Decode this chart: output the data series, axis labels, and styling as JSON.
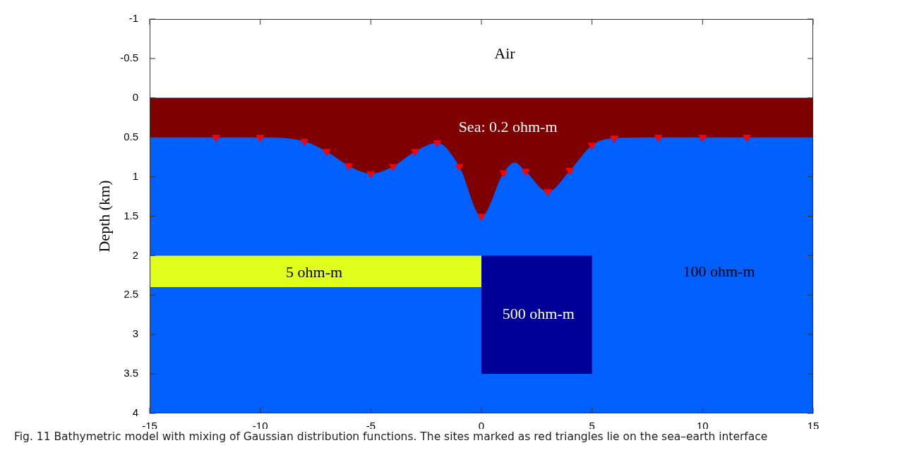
{
  "chart_data": {
    "type": "area",
    "xlabel": null,
    "ylabel": "Depth (km)",
    "xlim": [
      -15,
      15
    ],
    "xticks": [
      -15,
      -10,
      -5,
      0,
      5,
      10,
      15
    ],
    "ylim": [
      4,
      -1
    ],
    "yticks": [
      -1,
      -0.5,
      0,
      0.5,
      1,
      1.5,
      2,
      2.5,
      3,
      3.5,
      4
    ],
    "grid": false,
    "legend": false,
    "bands": [
      {
        "axis": "y",
        "from": 0,
        "to": 4,
        "color": "#005fff"
      }
    ],
    "series": [
      {
        "color": "#7f0000",
        "x": [
          -15,
          -12,
          -10,
          -8,
          -7,
          -6,
          -5,
          -4,
          -3,
          -2,
          -1,
          0,
          1,
          1.5,
          2,
          3,
          4,
          5,
          6,
          8,
          10,
          12,
          15
        ],
        "values": [
          0.5,
          0.5,
          0.5,
          0.55,
          0.68,
          0.86,
          0.96,
          0.87,
          0.68,
          0.57,
          0.87,
          1.5,
          0.95,
          0.82,
          0.93,
          1.19,
          0.92,
          0.6,
          0.51,
          0.5,
          0.5,
          0.5,
          0.5
        ]
      },
      {
        "type": "area",
        "color": "#e0ff1a",
        "x": [
          -15,
          0,
          0,
          -15,
          -15
        ],
        "values": [
          2,
          2,
          2.4,
          2.4,
          2
        ]
      },
      {
        "type": "area",
        "color": "#000099",
        "x": [
          0,
          5,
          5,
          0,
          0
        ],
        "values": [
          2,
          2,
          3.5,
          3.5,
          2
        ]
      },
      {
        "type": "scatter",
        "color": "#ff0000",
        "marker": "triangle",
        "x": [
          -12,
          -10,
          -8,
          -7,
          -6,
          -5,
          -4,
          -3,
          -2,
          -1,
          0,
          1,
          2,
          3,
          4,
          5,
          6,
          8,
          10,
          12
        ],
        "values": [
          0.5,
          0.5,
          0.55,
          0.68,
          0.86,
          0.96,
          0.87,
          0.68,
          0.57,
          0.87,
          1.5,
          0.95,
          0.93,
          1.19,
          0.92,
          0.6,
          0.51,
          0.5,
          0.5,
          0.5
        ]
      }
    ],
    "annotations": [
      "Air",
      "Sea: 0.2 ohm-m",
      "5 ohm-m",
      "500 ohm-m",
      "100 ohm-m",
      "Fig. 11  Bathymetric model with mixing of Gaussian distribution functions. The sites marked as red triangles lie on the sea–earth interface"
    ]
  }
}
